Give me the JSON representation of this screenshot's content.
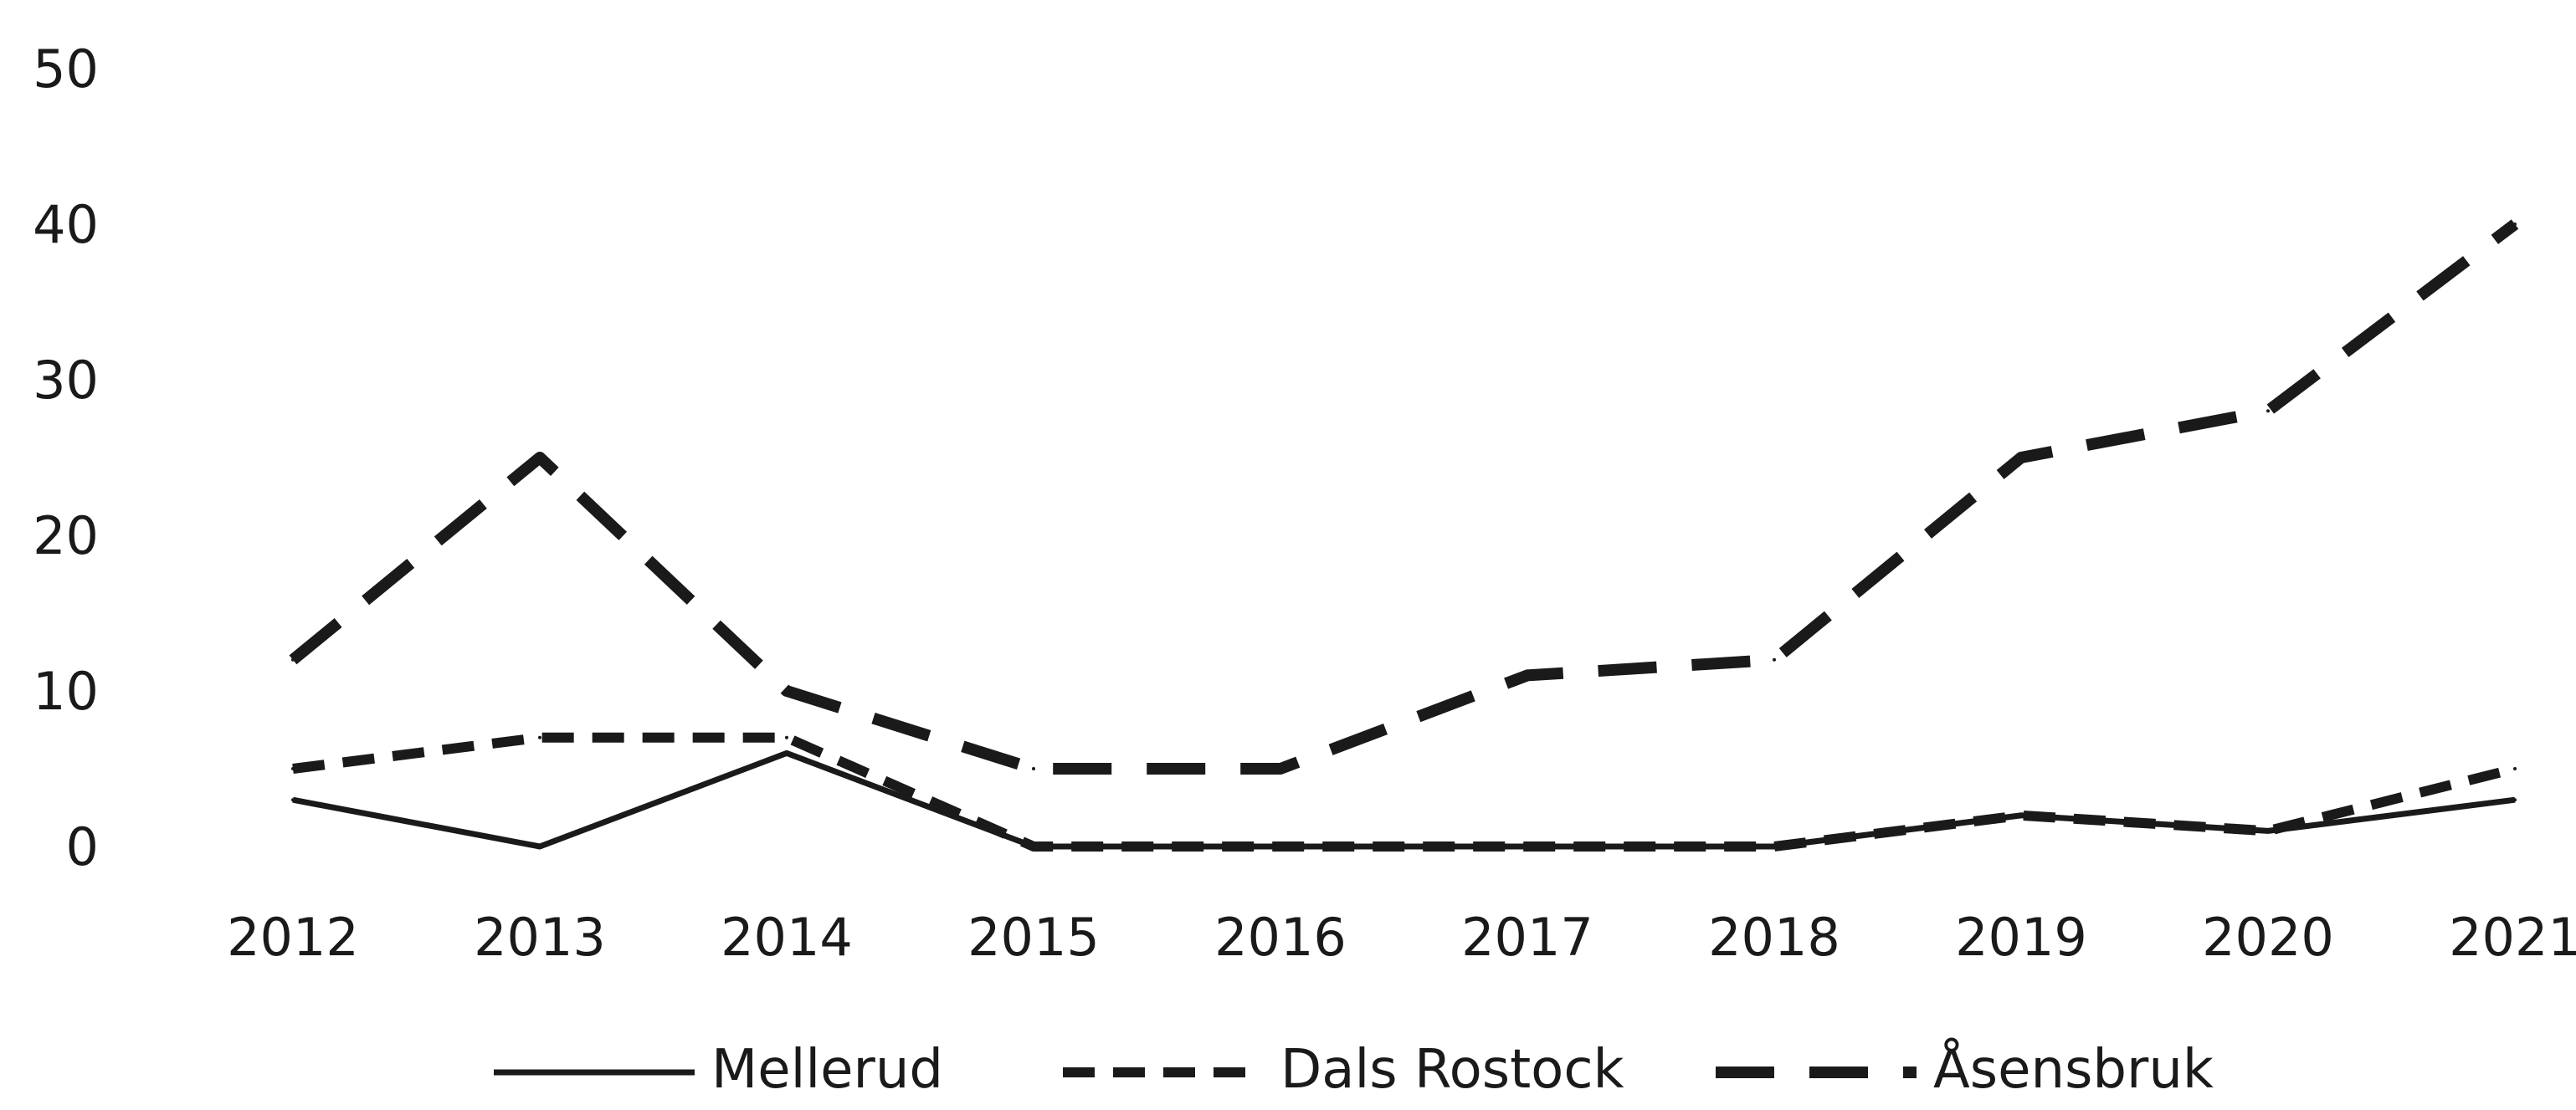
{
  "chart_data": {
    "type": "line",
    "title": "",
    "xlabel": "",
    "ylabel": "",
    "categories": [
      "2012",
      "2013",
      "2014",
      "2015",
      "2016",
      "2017",
      "2018",
      "2019",
      "2020",
      "2021"
    ],
    "ylim": [
      0,
      50
    ],
    "yticks": [
      "0",
      "10",
      "20",
      "30",
      "40",
      "50"
    ],
    "grid": false,
    "legend_position": "bottom",
    "series": [
      {
        "name": "Mellerud",
        "style": "solid",
        "color": "#1a1a1a",
        "values": [
          3,
          0,
          6,
          0,
          0,
          0,
          0,
          2,
          1,
          3
        ]
      },
      {
        "name": "Dals Rostock",
        "style": "dashed",
        "color": "#1a1a1a",
        "values": [
          5,
          7,
          7,
          0,
          0,
          0,
          0,
          2,
          1,
          5
        ]
      },
      {
        "name": "Åsensbruk",
        "style": "long-dashed",
        "color": "#1a1a1a",
        "values": [
          12,
          25,
          10,
          5,
          5,
          11,
          12,
          25,
          28,
          40
        ]
      }
    ]
  }
}
